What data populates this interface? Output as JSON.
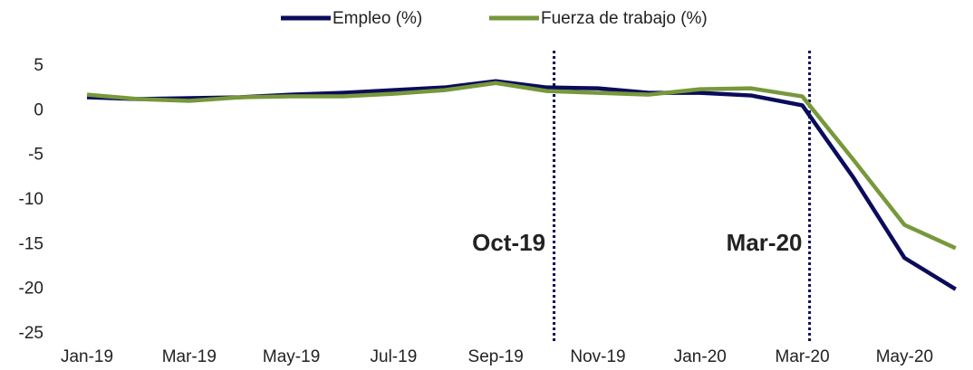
{
  "chart_data": {
    "type": "line",
    "categories": [
      "Jan-19",
      null,
      "Mar-19",
      null,
      "May-19",
      null,
      "Jul-19",
      null,
      "Sep-19",
      null,
      "Nov-19",
      null,
      "Jan-20",
      null,
      "Mar-20",
      null,
      "May-20",
      null
    ],
    "series": [
      {
        "name": "Empleo (%)",
        "color": "#0b0b5c",
        "values": [
          1.5,
          1.3,
          1.4,
          1.5,
          1.8,
          2.0,
          2.3,
          2.6,
          3.3,
          2.6,
          2.5,
          2.0,
          2.0,
          1.7,
          0.6,
          -7.5,
          -16.5,
          -20.0
        ]
      },
      {
        "name": "Fuerza de trabajo (%)",
        "color": "#77983b",
        "values": [
          1.8,
          1.3,
          1.1,
          1.5,
          1.6,
          1.6,
          1.9,
          2.3,
          3.1,
          2.2,
          2.0,
          1.8,
          2.4,
          2.5,
          1.6,
          -5.5,
          -12.8,
          -15.4
        ]
      }
    ],
    "ylim": [
      -25,
      5
    ],
    "yticks": [
      5,
      0,
      -5,
      -10,
      -15,
      -20,
      -25
    ],
    "annotations": [
      {
        "text": "Oct-19",
        "index": 9
      },
      {
        "text": "Mar-20",
        "index": 14
      }
    ],
    "legend": "top"
  }
}
